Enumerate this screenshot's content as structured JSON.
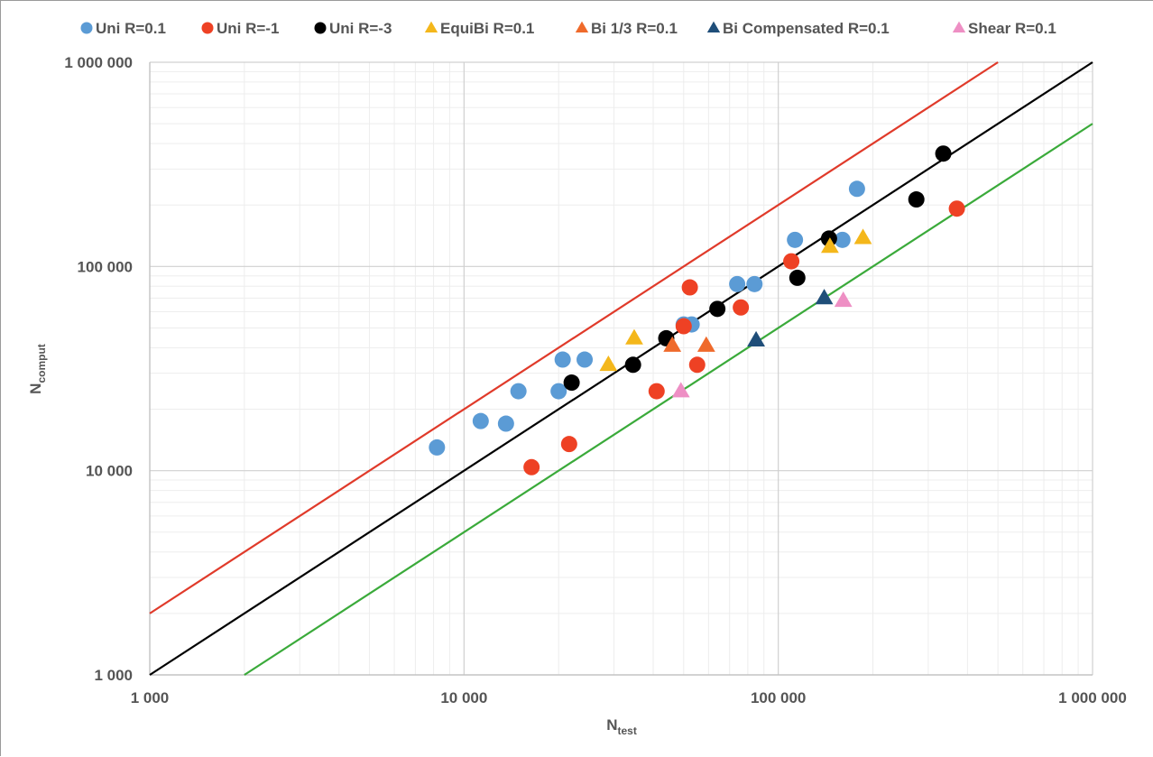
{
  "chart_data": {
    "type": "scatter",
    "title": "",
    "xlabel": "N",
    "xlabel_sub": "test",
    "ylabel": "N",
    "ylabel_sub": "comput",
    "xscale": "log",
    "yscale": "log",
    "xlim": [
      1000,
      1000000
    ],
    "ylim": [
      1000,
      1000000
    ],
    "x_tick_labels": [
      "1 000",
      "10 000",
      "100 000",
      "1 000 000"
    ],
    "y_tick_labels": [
      "1 000",
      "10 000",
      "100 000",
      "1 000 000"
    ],
    "grid": true,
    "legend_position": "top",
    "reference_lines": [
      {
        "name": "Upper bound (x2)",
        "factor": 2,
        "color": "#e03a2a"
      },
      {
        "name": "Perfect agreement",
        "factor": 1,
        "color": "#000000"
      },
      {
        "name": "Lower bound (x0.5)",
        "factor": 0.5,
        "color": "#3aaa3a"
      }
    ],
    "series": [
      {
        "name": "Uni R=0.1",
        "marker": "circle",
        "color": "#5b9bd5",
        "points": [
          [
            8200,
            13000
          ],
          [
            11300,
            17500
          ],
          [
            13600,
            17000
          ],
          [
            14900,
            24500
          ],
          [
            20000,
            24500
          ],
          [
            20600,
            35000
          ],
          [
            24200,
            35000
          ],
          [
            50000,
            52000
          ],
          [
            53000,
            52000
          ],
          [
            74000,
            82000
          ],
          [
            84000,
            82000
          ],
          [
            113000,
            135000
          ],
          [
            160000,
            135000
          ],
          [
            178000,
            240000
          ]
        ]
      },
      {
        "name": "Uni R=-1",
        "marker": "circle",
        "color": "#ee4124",
        "points": [
          [
            16400,
            10400
          ],
          [
            21600,
            13500
          ],
          [
            41000,
            24500
          ],
          [
            50000,
            51000
          ],
          [
            52300,
            79000
          ],
          [
            55200,
            33000
          ],
          [
            76000,
            63000
          ],
          [
            110000,
            106000
          ],
          [
            370000,
            192000
          ]
        ]
      },
      {
        "name": "Uni R=-3",
        "marker": "circle",
        "color": "#000000",
        "points": [
          [
            22000,
            27000
          ],
          [
            34500,
            33000
          ],
          [
            44000,
            44500
          ],
          [
            64000,
            62000
          ],
          [
            115000,
            88000
          ],
          [
            145000,
            137000
          ],
          [
            275000,
            213000
          ],
          [
            335000,
            357000
          ]
        ]
      },
      {
        "name": "EquiBi R=0.1",
        "marker": "triangle",
        "color": "#f4b71b",
        "points": [
          [
            28800,
            33000
          ],
          [
            34800,
            44500
          ],
          [
            146000,
            125000
          ],
          [
            186000,
            138000
          ]
        ]
      },
      {
        "name": "Bi 1/3 R=0.1",
        "marker": "triangle",
        "color": "#ef6a2b",
        "points": [
          [
            46000,
            41000
          ],
          [
            59000,
            41000
          ]
        ]
      },
      {
        "name": "Bi Compensated R=0.1",
        "marker": "triangle",
        "color": "#1f4e79",
        "points": [
          [
            85000,
            43500
          ],
          [
            140000,
            70000
          ]
        ]
      },
      {
        "name": "Shear R=0.1",
        "marker": "triangle",
        "color": "#ee8fc4",
        "points": [
          [
            49000,
            24500
          ],
          [
            161000,
            68000
          ]
        ]
      }
    ]
  }
}
